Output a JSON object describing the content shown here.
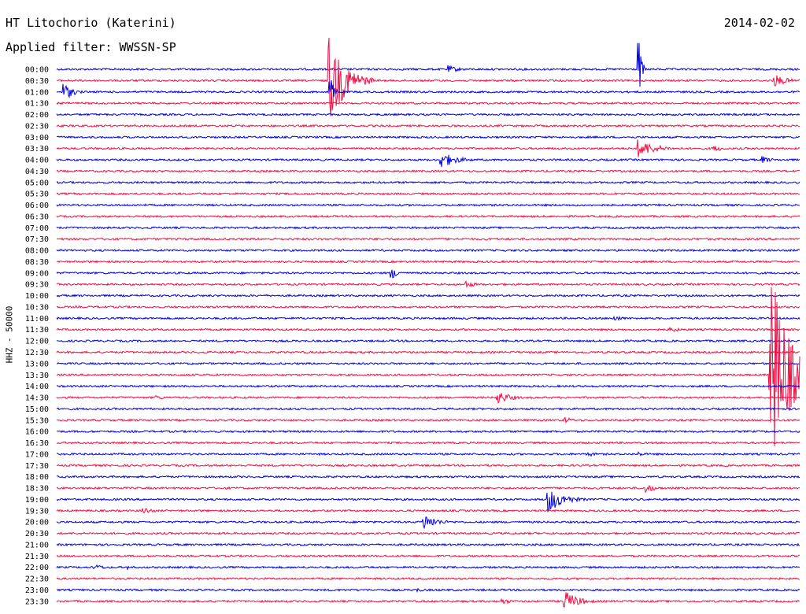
{
  "header": {
    "station": "HT Litochorio (Katerini)",
    "date": "2014-02-02",
    "filter": "Applied filter: WWSSN-SP",
    "ylabel": "HHZ - 50000"
  },
  "colors": {
    "even": "#0000dd",
    "odd": "#ee1144"
  },
  "chart_data": {
    "type": "line",
    "title": "HT Litochorio (Katerini)",
    "date": "2014-02-02",
    "filter": "WWSSN-SP",
    "ylabel": "HHZ - 50000",
    "rows": [
      "00:00",
      "00:30",
      "01:00",
      "01:30",
      "02:00",
      "02:30",
      "03:00",
      "03:30",
      "04:00",
      "04:30",
      "05:00",
      "05:30",
      "06:00",
      "06:30",
      "07:00",
      "07:30",
      "08:00",
      "08:30",
      "09:00",
      "09:30",
      "10:00",
      "10:30",
      "11:00",
      "11:30",
      "12:00",
      "12:30",
      "13:00",
      "13:30",
      "14:00",
      "14:30",
      "15:00",
      "15:30",
      "16:00",
      "16:30",
      "17:00",
      "17:30",
      "18:00",
      "18:30",
      "19:00",
      "19:30",
      "20:00",
      "20:30",
      "21:00",
      "21:30",
      "22:00",
      "22:30",
      "23:00",
      "23:30"
    ],
    "row_minutes": 30,
    "bursts": [
      {
        "row": 0,
        "minute": 15.8,
        "amplitude": 5,
        "duration": 1.5
      },
      {
        "row": 0,
        "minute": 23.5,
        "amplitude": 42,
        "duration": 0.3
      },
      {
        "row": 1,
        "minute": 11,
        "amplitude": 58,
        "duration": 1.8
      },
      {
        "row": 1,
        "minute": 29,
        "amplitude": 8,
        "duration": 1.5
      },
      {
        "row": 2,
        "minute": 0.3,
        "amplitude": 12,
        "duration": 1
      },
      {
        "row": 2,
        "minute": 11,
        "amplitude": 30,
        "duration": 0.4
      },
      {
        "row": 7,
        "minute": 23.5,
        "amplitude": 12,
        "duration": 2
      },
      {
        "row": 7,
        "minute": 26.5,
        "amplitude": 5,
        "duration": 1.2
      },
      {
        "row": 8,
        "minute": 15.5,
        "amplitude": 11,
        "duration": 1.8
      },
      {
        "row": 8,
        "minute": 28.5,
        "amplitude": 5,
        "duration": 1
      },
      {
        "row": 18,
        "minute": 13.5,
        "amplitude": 8,
        "duration": 1
      },
      {
        "row": 19,
        "minute": 16.5,
        "amplitude": 5,
        "duration": 1.2
      },
      {
        "row": 22,
        "minute": 22.5,
        "amplitude": 4,
        "duration": 1.2
      },
      {
        "row": 23,
        "minute": 24.8,
        "amplitude": 4,
        "duration": 1
      },
      {
        "row": 27,
        "minute": 28.8,
        "amplitude": 150,
        "duration": 2
      },
      {
        "row": 29,
        "minute": 17.8,
        "amplitude": 9,
        "duration": 1.5
      },
      {
        "row": 29,
        "minute": 4,
        "amplitude": 3,
        "duration": 1.5
      },
      {
        "row": 31,
        "minute": 20.5,
        "amplitude": 4,
        "duration": 1.2
      },
      {
        "row": 34,
        "minute": 21.5,
        "amplitude": 3,
        "duration": 1.2
      },
      {
        "row": 34,
        "minute": 23.5,
        "amplitude": 3,
        "duration": 1.2
      },
      {
        "row": 37,
        "minute": 23.8,
        "amplitude": 6,
        "duration": 1.2
      },
      {
        "row": 38,
        "minute": 19.8,
        "amplitude": 18,
        "duration": 1.8
      },
      {
        "row": 39,
        "minute": 3.5,
        "amplitude": 5,
        "duration": 1.2
      },
      {
        "row": 40,
        "minute": 14.8,
        "amplitude": 11,
        "duration": 1.5
      },
      {
        "row": 44,
        "minute": 1.5,
        "amplitude": 4,
        "duration": 1.5
      },
      {
        "row": 44,
        "minute": 2.8,
        "amplitude": 3,
        "duration": 1.2
      },
      {
        "row": 46,
        "minute": 14.5,
        "amplitude": 3,
        "duration": 1.2
      },
      {
        "row": 47,
        "minute": 20.5,
        "amplitude": 14,
        "duration": 1.6
      },
      {
        "row": 47,
        "minute": 18,
        "amplitude": 4,
        "duration": 1.2
      }
    ]
  }
}
